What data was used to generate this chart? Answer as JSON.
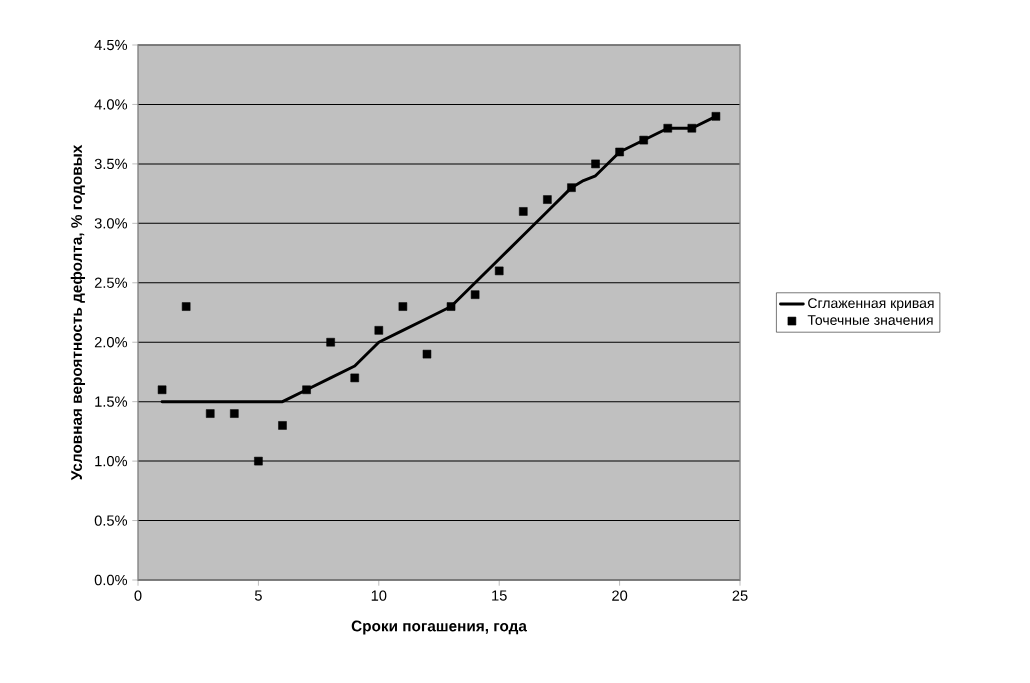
{
  "chart_data": {
    "type": "line",
    "xlabel": "Сроки погашения,  года",
    "ylabel": "Условная вероятность дефолта, % годовых",
    "xlim": [
      0,
      25
    ],
    "xticks": [
      0,
      5,
      10,
      15,
      20,
      25
    ],
    "ylim": [
      0,
      4.5
    ],
    "yticks": [
      {
        "value": 0,
        "label": "0.0%"
      },
      {
        "value": 0.5,
        "label": "0.5%"
      },
      {
        "value": 1,
        "label": "1.0%"
      },
      {
        "value": 1.5,
        "label": "1.5%"
      },
      {
        "value": 2,
        "label": "2.0%"
      },
      {
        "value": 2.5,
        "label": "2.5%"
      },
      {
        "value": 3,
        "label": "3.0%"
      },
      {
        "value": 3.5,
        "label": "3.5%"
      },
      {
        "value": 4,
        "label": "4.0%"
      },
      {
        "value": 4.5,
        "label": "4.5%"
      }
    ],
    "grid": "y",
    "legend": "right",
    "series": [
      {
        "name": "Сглаженная кривая",
        "type": "line",
        "color": "#000000",
        "marker": "none",
        "line_style": "solid",
        "x": [
          1,
          2,
          3,
          4,
          5,
          6,
          7,
          8,
          9,
          9.5,
          10,
          11,
          12,
          13,
          14,
          15,
          16,
          17,
          18,
          18.5,
          19,
          20,
          21,
          22,
          23,
          24
        ],
        "values": [
          1.5,
          1.5,
          1.5,
          1.5,
          1.5,
          1.5,
          1.6,
          1.7,
          1.8,
          1.9,
          2.0,
          2.1,
          2.2,
          2.3,
          2.5,
          2.7,
          2.9,
          3.1,
          3.3,
          3.36,
          3.4,
          3.6,
          3.7,
          3.8,
          3.8,
          3.9
        ]
      },
      {
        "name": "Точечные значения",
        "type": "scatter",
        "color": "#000000",
        "marker": "square",
        "x": [
          1,
          2,
          3,
          4,
          5,
          6,
          7,
          8,
          9,
          10,
          11,
          12,
          13,
          14,
          15,
          16,
          17,
          18,
          19,
          20,
          21,
          22,
          23,
          24
        ],
        "values": [
          1.6,
          2.3,
          1.4,
          1.4,
          1.0,
          1.3,
          1.6,
          2.0,
          1.7,
          2.1,
          2.3,
          1.9,
          2.3,
          2.4,
          2.6,
          3.1,
          3.2,
          3.3,
          3.5,
          3.6,
          3.7,
          3.8,
          3.8,
          3.9
        ]
      }
    ]
  }
}
